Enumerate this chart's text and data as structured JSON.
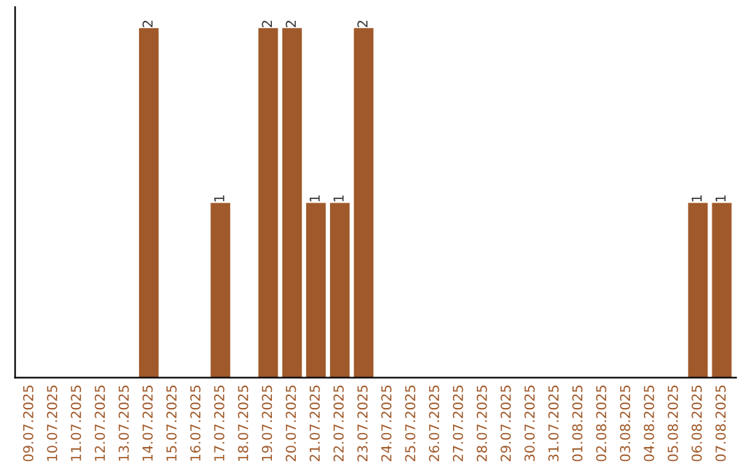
{
  "chart_data": {
    "type": "bar",
    "categories": [
      "09.07.2025",
      "10.07.2025",
      "11.07.2025",
      "12.07.2025",
      "13.07.2025",
      "14.07.2025",
      "15.07.2025",
      "16.07.2025",
      "17.07.2025",
      "18.07.2025",
      "19.07.2025",
      "20.07.2025",
      "21.07.2025",
      "22.07.2025",
      "23.07.2025",
      "24.07.2025",
      "25.07.2025",
      "26.07.2025",
      "27.07.2025",
      "28.07.2025",
      "29.07.2025",
      "30.07.2025",
      "31.07.2025",
      "01.08.2025",
      "02.08.2025",
      "03.08.2025",
      "04.08.2025",
      "05.08.2025",
      "06.08.2025",
      "07.08.2025"
    ],
    "values": [
      0,
      0,
      0,
      0,
      0,
      2,
      0,
      0,
      1,
      0,
      2,
      2,
      1,
      1,
      2,
      0,
      0,
      0,
      0,
      0,
      0,
      0,
      0,
      0,
      0,
      0,
      0,
      0,
      1,
      1
    ],
    "value_labels": [
      null,
      null,
      null,
      null,
      null,
      "2",
      null,
      null,
      "1",
      null,
      "2",
      "2",
      "1",
      "1",
      "2",
      null,
      null,
      null,
      null,
      null,
      null,
      null,
      null,
      null,
      null,
      null,
      null,
      null,
      "1",
      "1"
    ],
    "color": "#a0592a",
    "tick_labels": "x",
    "grid": false,
    "legend": false
  }
}
